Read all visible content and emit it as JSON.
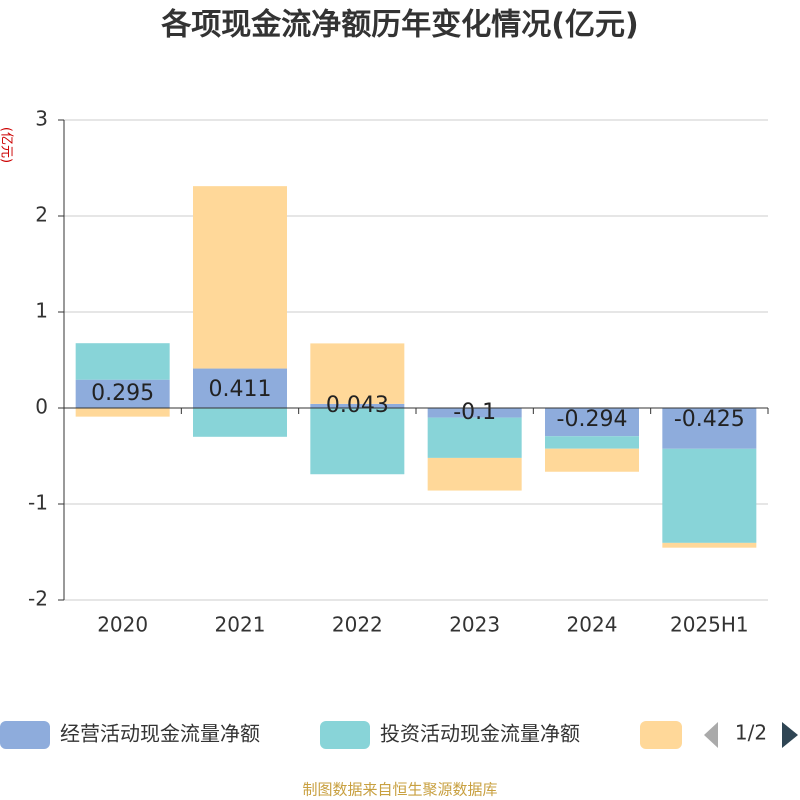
{
  "chart_data": {
    "type": "stacked-bar",
    "title": "各项现金流净额历年变化情况(亿元)",
    "y_label": "(亿元)",
    "categories": [
      "2020",
      "2021",
      "2022",
      "2023",
      "2024",
      "2025H1"
    ],
    "series": [
      {
        "name": "经营活动现金流量净额",
        "color": "#8eacdc",
        "values": [
          0.295,
          0.411,
          0.043,
          -0.1,
          -0.294,
          -0.425
        ]
      },
      {
        "name": "投资活动现金流量净额",
        "color": "#88d4d8",
        "values": [
          0.38,
          -0.3,
          -0.69,
          -0.42,
          -0.13,
          -0.98
        ]
      },
      {
        "color": "#ffd899",
        "values": [
          -0.09,
          1.9,
          0.63,
          -0.34,
          -0.24,
          -0.05
        ]
      }
    ],
    "labeled_series": 0,
    "ylim": [
      -2,
      3
    ],
    "yticks": [
      -2,
      -1,
      0,
      1,
      2,
      3
    ],
    "grid": true,
    "legend_page": "1/2",
    "source": "制图数据来自恒生聚源数据库"
  }
}
